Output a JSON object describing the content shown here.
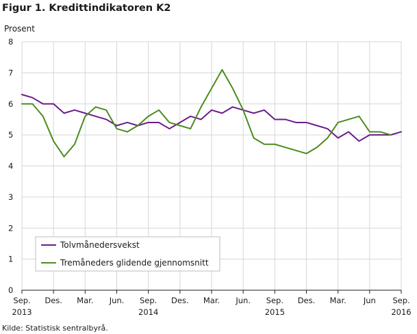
{
  "figure": {
    "title": "Figur 1. Kredittindikatoren K2",
    "source": "Kilde: Statistisk sentralbyrå."
  },
  "chart_data": {
    "type": "line",
    "title": "Figur 1. Kredittindikatoren K2",
    "ylabel": "Prosent",
    "xlabel": "",
    "ylim": [
      0,
      8
    ],
    "yticks": [
      0,
      1,
      2,
      3,
      4,
      5,
      6,
      7,
      8
    ],
    "grid": true,
    "legend_position": "bottom-left",
    "x": [
      "2013-09",
      "2013-10",
      "2013-11",
      "2013-12",
      "2014-01",
      "2014-02",
      "2014-03",
      "2014-04",
      "2014-05",
      "2014-06",
      "2014-07",
      "2014-08",
      "2014-09",
      "2014-10",
      "2014-11",
      "2014-12",
      "2015-01",
      "2015-02",
      "2015-03",
      "2015-04",
      "2015-05",
      "2015-06",
      "2015-07",
      "2015-08",
      "2015-09",
      "2015-10",
      "2015-11",
      "2015-12",
      "2016-01",
      "2016-02",
      "2016-03",
      "2016-04",
      "2016-05",
      "2016-06",
      "2016-07",
      "2016-08",
      "2016-09"
    ],
    "xticks": [
      {
        "label": "Sep.",
        "index": 0,
        "year": "2013"
      },
      {
        "label": "Des.",
        "index": 3,
        "year": ""
      },
      {
        "label": "Mar.",
        "index": 6,
        "year": ""
      },
      {
        "label": "Jun.",
        "index": 9,
        "year": ""
      },
      {
        "label": "Sep.",
        "index": 12,
        "year": "2014"
      },
      {
        "label": "Des.",
        "index": 15,
        "year": ""
      },
      {
        "label": "Mar.",
        "index": 18,
        "year": ""
      },
      {
        "label": "Jun.",
        "index": 21,
        "year": ""
      },
      {
        "label": "Sep.",
        "index": 24,
        "year": "2015"
      },
      {
        "label": "Des.",
        "index": 27,
        "year": ""
      },
      {
        "label": "Mar.",
        "index": 30,
        "year": ""
      },
      {
        "label": "Jun",
        "index": 33,
        "year": ""
      },
      {
        "label": "Sep.",
        "index": 36,
        "year": "2016"
      }
    ],
    "series": [
      {
        "name": "Tolvmånedersvekst",
        "color": "#6a1b8a",
        "values": [
          6.3,
          6.2,
          6.0,
          6.0,
          5.7,
          5.8,
          5.7,
          5.6,
          5.5,
          5.3,
          5.4,
          5.3,
          5.4,
          5.4,
          5.2,
          5.4,
          5.6,
          5.5,
          5.8,
          5.7,
          5.9,
          5.8,
          5.7,
          5.8,
          5.5,
          5.5,
          5.4,
          5.4,
          5.3,
          5.2,
          4.9,
          5.1,
          4.8,
          5.0,
          5.0,
          5.0,
          5.1
        ]
      },
      {
        "name": "Tremåneders glidende gjennomsnitt",
        "color": "#4a8c1c",
        "values": [
          6.0,
          6.0,
          5.6,
          4.8,
          4.3,
          4.7,
          5.6,
          5.9,
          5.8,
          5.2,
          5.1,
          5.3,
          5.6,
          5.8,
          5.4,
          5.3,
          5.2,
          5.9,
          6.5,
          7.1,
          6.5,
          5.8,
          4.9,
          4.7,
          4.7,
          4.6,
          4.5,
          4.4,
          4.6,
          4.9,
          5.4,
          5.5,
          5.6,
          5.1,
          5.1,
          5.0,
          null
        ]
      }
    ]
  }
}
